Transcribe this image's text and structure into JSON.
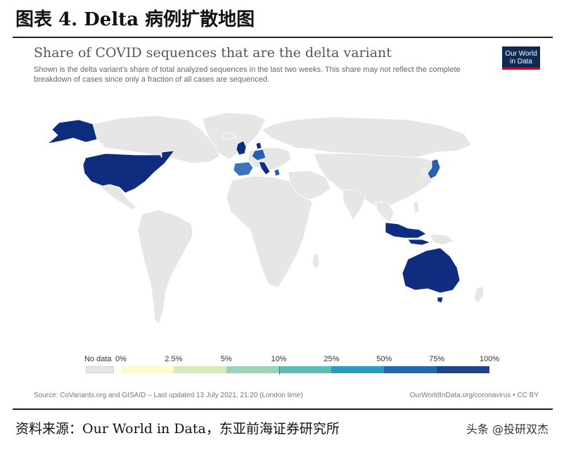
{
  "figure_title": "图表 4.   Delta 病例扩散地图",
  "chart": {
    "title": "Share of COVID sequences that are the delta variant",
    "subtitle": "Shown is the delta variant's share of total analyzed sequences in the last two weeks. This share may not reflect the complete breakdown of cases since only a fraction of all cases are sequenced.",
    "logo_line1": "Our World",
    "logo_line2": "in Data",
    "source": "Source: CoVariants.org and GISAID – Last updated 13 July 2021, 21:20 (London time)",
    "url": "OurWorldInData.org/coronavirus • CC BY"
  },
  "legend": {
    "no_data_label": "No data",
    "ticks": [
      "0%",
      "2.5%",
      "5%",
      "10%",
      "25%",
      "50%",
      "75%",
      "100%"
    ],
    "colors": [
      "#fdfbcc",
      "#d6ecb8",
      "#9bd3b6",
      "#5fbdb9",
      "#2b9cc0",
      "#226aad",
      "#1c448f"
    ]
  },
  "colors": {
    "land_no_data": "#e6e6e6",
    "dark_blue": "#0e2d7e",
    "mid_blue": "#2a5eae",
    "light_mid_blue": "#3b74ba"
  },
  "footer": {
    "source": "资料来源：Our World in Data，东亚前海证券研究所",
    "watermark": "头条 @投研双杰"
  }
}
